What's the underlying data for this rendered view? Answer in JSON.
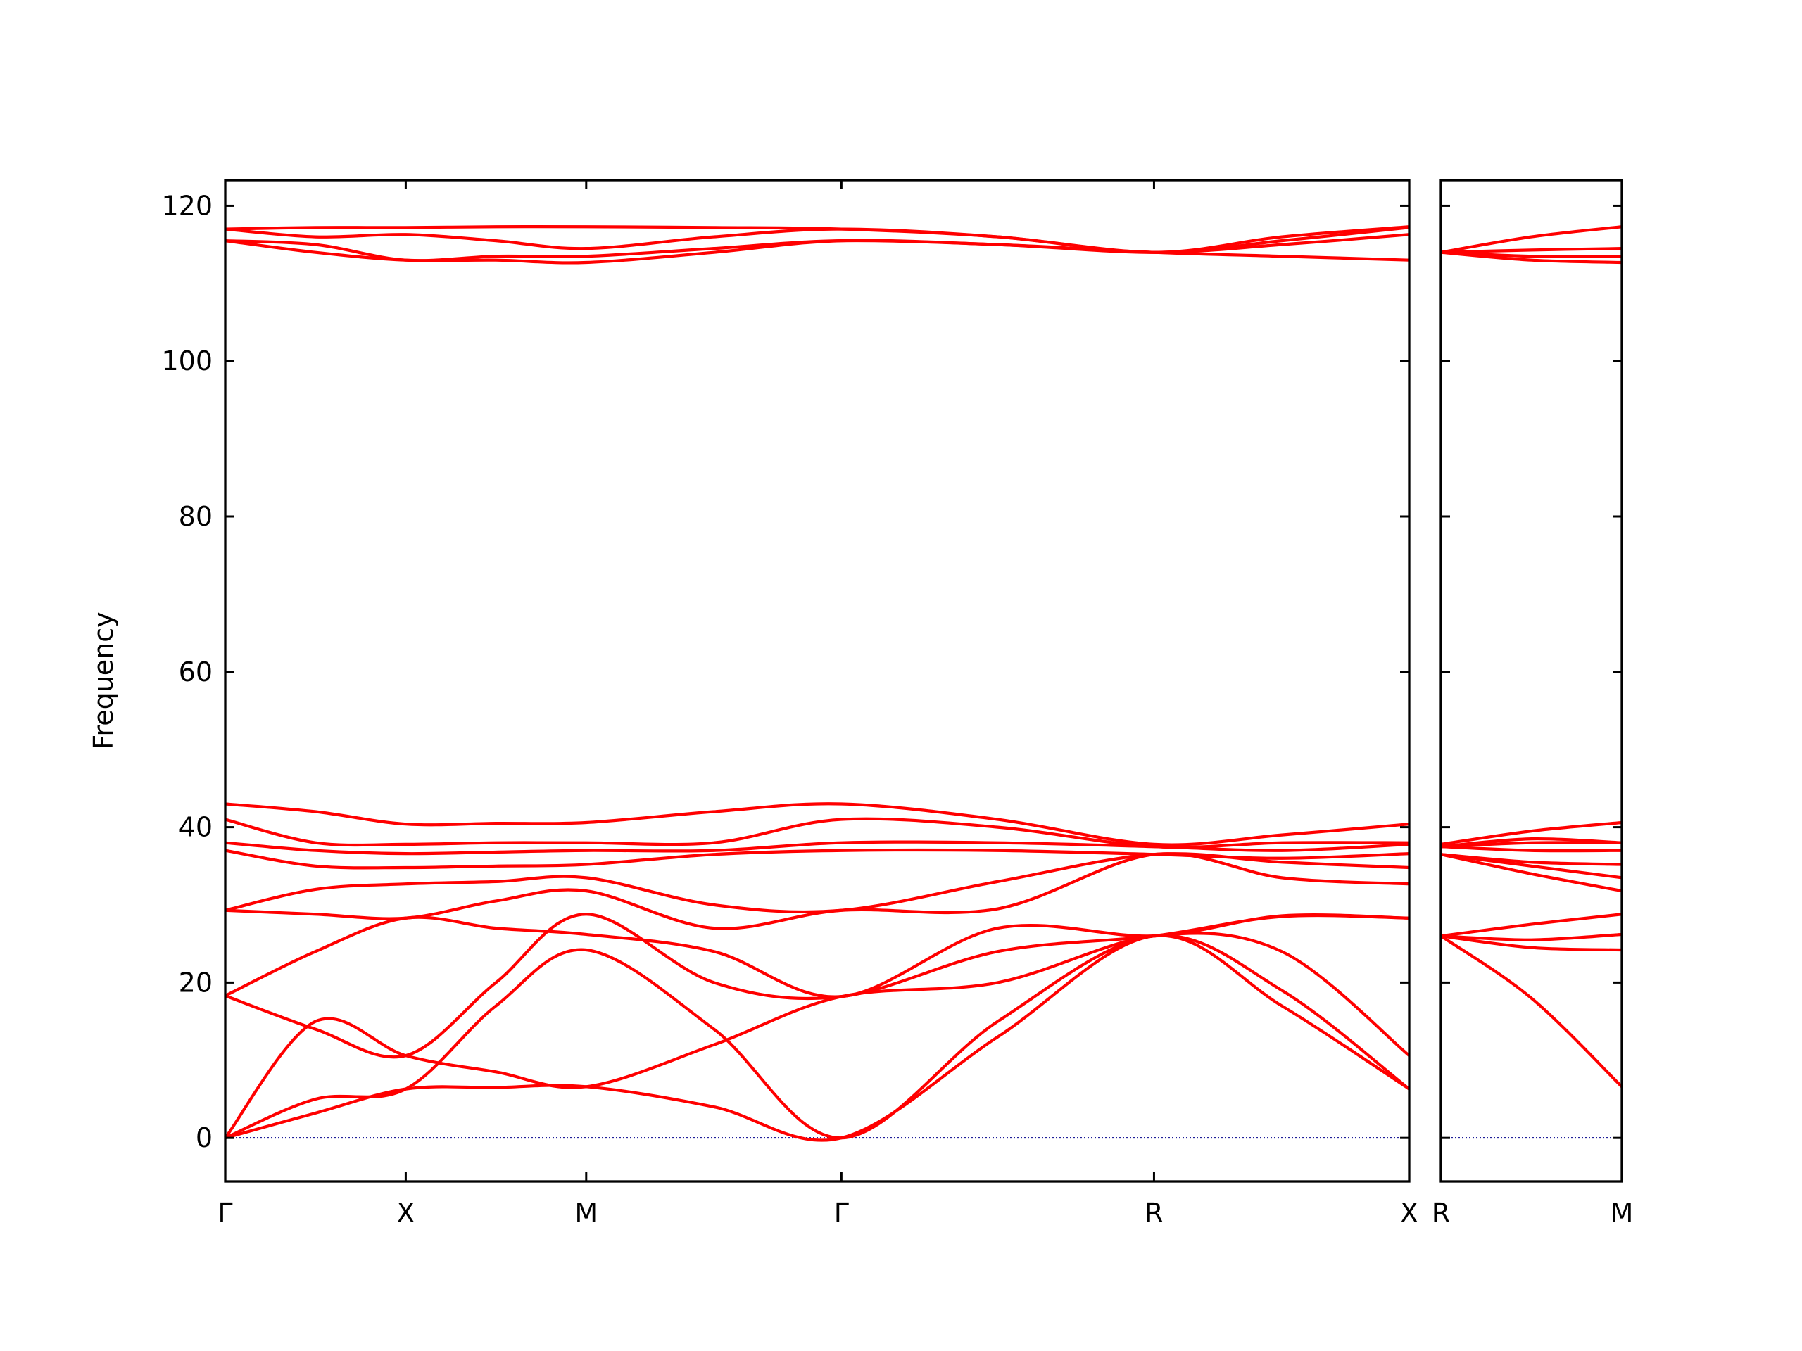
{
  "chart_data": [
    {
      "type": "line",
      "ylabel": "Frequency",
      "color": "#ff0000",
      "hline": 0,
      "hline_color": "#00008b",
      "xlim": [
        0,
        3.28
      ],
      "ylim": [
        -5.6,
        123.3
      ],
      "ytick_labels": true,
      "xticks": [
        {
          "value": 0,
          "label": "Γ"
        },
        {
          "value": 0.5,
          "label": "X"
        },
        {
          "value": 1.0,
          "label": "M"
        },
        {
          "value": 1.707,
          "label": "Γ"
        },
        {
          "value": 2.573,
          "label": "R"
        },
        {
          "value": 3.28,
          "label": "X"
        }
      ],
      "yticks": [
        0,
        20,
        40,
        60,
        80,
        100,
        120
      ],
      "x": [
        0,
        0.25,
        0.5,
        0.75,
        1.0,
        1.354,
        1.707,
        2.14,
        2.573,
        2.927,
        3.28
      ],
      "series": [
        {
          "values": [
            0,
            3.2,
            6.3,
            6.5,
            6.6,
            4,
            0,
            13,
            26,
            17,
            6.3
          ]
        },
        {
          "values": [
            0,
            5,
            6.3,
            17,
            24.2,
            14,
            0,
            15,
            26,
            19,
            6.3
          ]
        },
        {
          "values": [
            0,
            15,
            10.6,
            8.5,
            6.6,
            12,
            18.2,
            20,
            26,
            24,
            10.6
          ]
        },
        {
          "values": [
            18.3,
            14,
            10.6,
            20,
            28.8,
            20,
            18.2,
            24,
            26,
            28.5,
            28.3
          ]
        },
        {
          "values": [
            18.3,
            24,
            28.3,
            27,
            26.2,
            24,
            18.2,
            27,
            26,
            28.6,
            28.3
          ]
        },
        {
          "values": [
            29.3,
            28.8,
            28.3,
            30.5,
            31.8,
            27,
            29.3,
            29.5,
            36.5,
            33.5,
            32.7
          ]
        },
        {
          "values": [
            29.3,
            32,
            32.7,
            33,
            33.5,
            30,
            29.3,
            33,
            36.5,
            35.5,
            34.8
          ]
        },
        {
          "values": [
            37,
            35,
            34.8,
            35,
            35.2,
            36.5,
            37,
            37,
            36.5,
            36,
            36.6
          ]
        },
        {
          "values": [
            38,
            37,
            36.6,
            36.8,
            37,
            37,
            38,
            38,
            37.5,
            37,
            37.8
          ]
        },
        {
          "values": [
            41,
            38,
            37.8,
            38,
            38,
            38,
            41,
            40,
            37.5,
            38,
            38
          ]
        },
        {
          "values": [
            43,
            42,
            40.4,
            40.5,
            40.6,
            42,
            43,
            41,
            37.8,
            39,
            40.4
          ]
        },
        {
          "values": [
            115.5,
            114,
            113,
            113,
            112.7,
            114,
            115.5,
            115,
            114,
            113.5,
            113
          ]
        },
        {
          "values": [
            115.5,
            115,
            113,
            113.5,
            113.5,
            114.5,
            115.5,
            115,
            114,
            115,
            116.3
          ]
        },
        {
          "values": [
            117,
            116,
            116.3,
            115.5,
            114.5,
            116,
            117,
            116,
            114,
            115.5,
            117.2
          ]
        },
        {
          "values": [
            117,
            117.2,
            117.2,
            117.3,
            117.3,
            117.2,
            117,
            116,
            114,
            116,
            117.3
          ]
        }
      ]
    },
    {
      "type": "line",
      "color": "#ff0000",
      "hline": 0,
      "hline_color": "#00008b",
      "xlim": [
        0,
        0.5
      ],
      "ylim": [
        -5.6,
        123.3
      ],
      "ytick_labels": false,
      "xticks": [
        {
          "value": 0,
          "label": "R"
        },
        {
          "value": 0.5,
          "label": "M"
        }
      ],
      "yticks": [
        0,
        20,
        40,
        60,
        80,
        100,
        120
      ],
      "x": [
        0,
        0.25,
        0.5
      ],
      "series": [
        {
          "values": [
            26,
            18,
            6.6
          ]
        },
        {
          "values": [
            26,
            24.5,
            24.2
          ]
        },
        {
          "values": [
            26,
            25.5,
            26.2
          ]
        },
        {
          "values": [
            26,
            27.5,
            28.8
          ]
        },
        {
          "values": [
            36.5,
            34,
            31.8
          ]
        },
        {
          "values": [
            36.5,
            35,
            33.5
          ]
        },
        {
          "values": [
            36.5,
            35.5,
            35.2
          ]
        },
        {
          "values": [
            37.5,
            37,
            37
          ]
        },
        {
          "values": [
            37.5,
            38,
            38
          ]
        },
        {
          "values": [
            37.5,
            38.5,
            38
          ]
        },
        {
          "values": [
            37.8,
            39.5,
            40.6
          ]
        },
        {
          "values": [
            114,
            113,
            112.7
          ]
        },
        {
          "values": [
            114,
            113.5,
            113.5
          ]
        },
        {
          "values": [
            114,
            114.3,
            114.5
          ]
        },
        {
          "values": [
            114,
            116,
            117.3
          ]
        }
      ]
    }
  ]
}
